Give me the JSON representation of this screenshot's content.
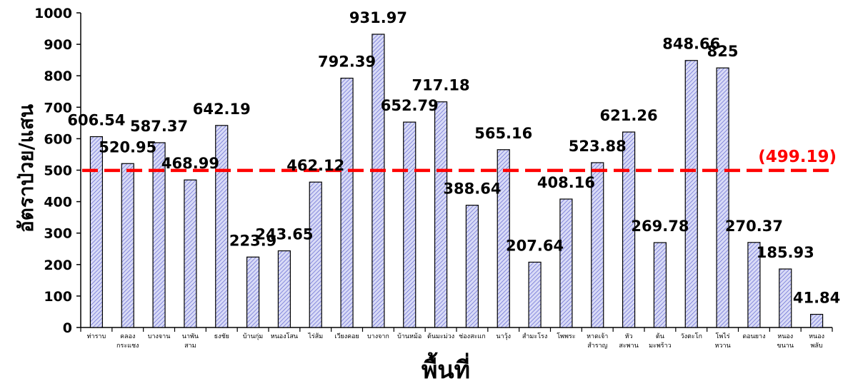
{
  "chart_data": {
    "type": "bar",
    "title": "",
    "xlabel": "พื้นที่",
    "ylabel": "อัตราป่วย/แสน",
    "ylim": [
      0,
      1000
    ],
    "yticks": [
      "0",
      "100",
      "200",
      "300",
      "400",
      "500",
      "600",
      "700",
      "800",
      "900",
      "1000"
    ],
    "grid": false,
    "categories": [
      [
        "ท่าราบ"
      ],
      [
        "คลอง",
        "กระแชง"
      ],
      [
        "บางจาน"
      ],
      [
        "นาพัน",
        "สาม"
      ],
      [
        "ธงชัย"
      ],
      [
        "บ้านกุ่ม"
      ],
      [
        "หนองโสน"
      ],
      [
        "ไร่ส้ม"
      ],
      [
        "เวียงคอย"
      ],
      [
        "บางจาก"
      ],
      [
        "บ้านหม้อ"
      ],
      [
        "ต้นมะม่วง"
      ],
      [
        "ช่องสะแก"
      ],
      [
        "นาวุ้ง"
      ],
      [
        "สำมะโรง"
      ],
      [
        "โพพระ"
      ],
      [
        "หาดเจ้า",
        "สำราญ"
      ],
      [
        "หัว",
        "สะพาน"
      ],
      [
        "ต้น",
        "มะพร้าว"
      ],
      [
        "วังตะโก"
      ],
      [
        "โพไร่",
        "หวาน"
      ],
      [
        "ดอนยาง"
      ],
      [
        "หนอง",
        "ขนาน"
      ],
      [
        "หนอง",
        "พลับ"
      ]
    ],
    "values": [
      606.54,
      520.95,
      587.37,
      468.99,
      642.19,
      223.9,
      243.65,
      462.12,
      792.39,
      931.97,
      652.79,
      717.18,
      388.64,
      565.16,
      207.64,
      408.16,
      523.88,
      621.26,
      269.78,
      848.66,
      825,
      270.37,
      185.93,
      41.84
    ],
    "data_labels": [
      "606.54",
      "520.95",
      "587.37",
      "468.99",
      "642.19",
      "223.9",
      "243.65",
      "462.12",
      "792.39",
      "931.97",
      "652.79",
      "717.18",
      "388.64",
      "565.16",
      "207.64",
      "408.16",
      "523.88",
      "621.26",
      "269.78",
      "848.66",
      "825",
      "270.37",
      "185.93",
      "41.84"
    ],
    "reference_line": {
      "value": 499.19,
      "label": "(499.19)",
      "color": "#ff0000",
      "style": "dashed"
    },
    "bar_style": {
      "fill": "#c7c9f0",
      "hatch": "#6b6fd6",
      "stroke": "#000000"
    }
  }
}
